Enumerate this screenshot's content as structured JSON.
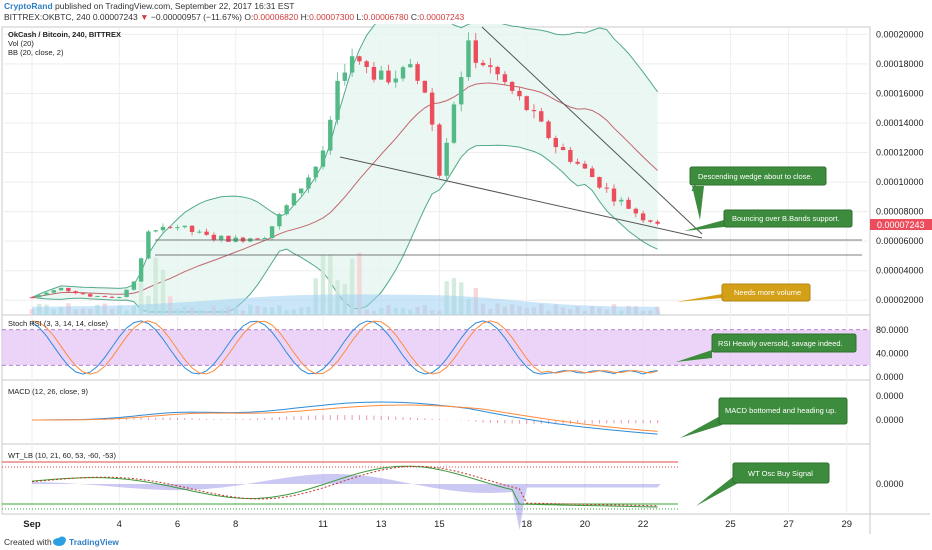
{
  "header": {
    "author": "CryptoRand",
    "published": "published on TradingView.com, September 22, 2017 16:31 EST",
    "symbol_line": "BITTREX:OKBTC, 240",
    "last": "0.00007243",
    "change": "−0.00000957 (−11.67%)",
    "o_label": "O:",
    "o_value": "0.00006820",
    "h_label": "H:",
    "h_value": "0.00007300",
    "l_label": "L:",
    "l_value": "0.00006780",
    "c_label": "C:",
    "c_value": "0.00007243"
  },
  "legend": {
    "pair": "OkCash / Bitcoin, 240, BITTREX",
    "vol": "Vol (20)",
    "bb": "BB (20, close, 2)",
    "stoch": "Stoch RSI (3, 3, 14, 14, close)",
    "macd": "MACD (12, 26, close, 9)",
    "wt": "WT_LB (10, 21, 60, 53, -60, -53)"
  },
  "annotations": {
    "wedge": "Descending wedge about to close.",
    "bands": "Bouncing over B.Bands support.",
    "volume": "Needs more volume",
    "rsi": "RSI Heavily oversold, savage indeed.",
    "macd": "MACD bottomed and heading up.",
    "wt": "WT Osc Buy Signal"
  },
  "colors": {
    "up": "#53b987",
    "down": "#eb4d5c",
    "bb": "#53a98a",
    "bb_fill": "#e6f5ef",
    "annotation_green": "#3d8b3d",
    "annotation_gold": "#d4a017",
    "rsi_band": "#e5c6f5",
    "macd_line": "#2e8bd8",
    "signal_line": "#ff8b3d"
  },
  "footer": {
    "created": "Created with",
    "brand": "TradingView"
  },
  "chart_data": {
    "type": "candlestick",
    "x_ticks": [
      "Sep",
      "4",
      "6",
      "8",
      "11",
      "13",
      "15",
      "18",
      "20",
      "22",
      "25",
      "27",
      "29"
    ],
    "price_axis": {
      "ticks": [
        "0.00020000",
        "0.00018000",
        "0.00016000",
        "0.00014000",
        "0.00012000",
        "0.00010000",
        "0.00008000",
        "0.00006000",
        "0.00004000",
        "0.00002000"
      ],
      "range": [
        1e-05,
        0.000205
      ],
      "last_label": "0.00007243"
    },
    "stoch_axis": {
      "ticks": [
        "80.0000",
        "40.0000",
        "0.0000"
      ],
      "range": [
        -5,
        105
      ],
      "band": [
        20,
        80
      ]
    },
    "macd_axis": {
      "ticks": [
        "0.0000",
        "0.0000"
      ]
    },
    "wt_axis": {
      "ticks": [
        "0.0000"
      ]
    },
    "price_path": [
      [
        "Sep 1",
        2.2e-05
      ],
      [
        "Sep 2",
        2.8e-05
      ],
      [
        "Sep 3",
        2.3e-05
      ],
      [
        "Sep 4",
        2.2e-05
      ],
      [
        "Sep 4 late",
        3.6e-05
      ],
      [
        "Sep 5",
        6.5e-05
      ],
      [
        "Sep 6",
        7e-05
      ],
      [
        "Sep 7",
        6.3e-05
      ],
      [
        "Sep 8",
        6.1e-05
      ],
      [
        "Sep 9",
        6.4e-05
      ],
      [
        "Sep 10",
        9e-05
      ],
      [
        "Sep 11",
        0.000118
      ],
      [
        "Sep 11 late",
        0.000178
      ],
      [
        "Sep 12",
        0.000182
      ],
      [
        "Sep 13",
        0.00017
      ],
      [
        "Sep 14",
        0.000175
      ],
      [
        "Sep 14 late",
        0.00016
      ],
      [
        "Sep 15",
        0.000105
      ],
      [
        "Sep 15 late",
        0.000165
      ],
      [
        "Sep 16",
        0.00019
      ],
      [
        "Sep 17",
        0.000172
      ],
      [
        "Sep 18",
        0.00015
      ],
      [
        "Sep 19",
        0.000125
      ],
      [
        "Sep 20",
        0.000108
      ],
      [
        "Sep 21",
        9e-05
      ],
      [
        "Sep 22",
        7.6e-05
      ],
      [
        "Sep 22 late",
        7.243e-05
      ]
    ]
  }
}
